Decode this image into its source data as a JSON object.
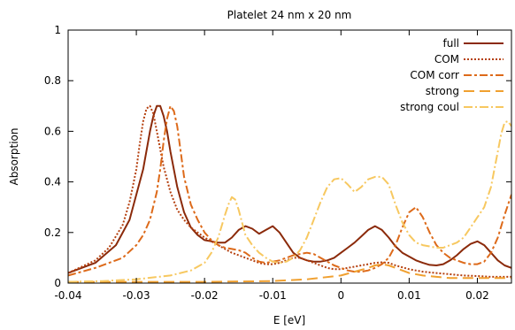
{
  "chart_data": {
    "type": "line",
    "title": "Platelet 24 nm x 20 nm",
    "xlabel": "E [eV]",
    "ylabel": "Absorption",
    "xlim": [
      -0.04,
      0.025
    ],
    "ylim": [
      0,
      1
    ],
    "xticks": [
      -0.04,
      -0.03,
      -0.02,
      -0.01,
      0,
      0.01,
      0.02
    ],
    "xtick_labels": [
      "-0.04",
      "-0.03",
      "-0.02",
      "-0.01",
      "0",
      "0.01",
      "0.02"
    ],
    "yticks": [
      0,
      0.2,
      0.4,
      0.6,
      0.8,
      1
    ],
    "ytick_labels": [
      "0",
      "0.2",
      "0.4",
      "0.6",
      "0.8",
      "1"
    ],
    "grid": false,
    "legend_position": "top-right",
    "series": [
      {
        "name": "full",
        "color": "#8b2a0a",
        "dash": "solid",
        "x": [
          -0.04,
          -0.036,
          -0.033,
          -0.031,
          -0.029,
          -0.028,
          -0.0275,
          -0.027,
          -0.0265,
          -0.026,
          -0.0255,
          -0.025,
          -0.024,
          -0.023,
          -0.022,
          -0.021,
          -0.02,
          -0.019,
          -0.018,
          -0.017,
          -0.016,
          -0.015,
          -0.014,
          -0.013,
          -0.012,
          -0.011,
          -0.01,
          -0.009,
          -0.008,
          -0.007,
          -0.006,
          -0.005,
          -0.004,
          -0.003,
          -0.002,
          -0.001,
          0,
          0.001,
          0.002,
          0.003,
          0.004,
          0.005,
          0.006,
          0.007,
          0.008,
          0.009,
          0.01,
          0.011,
          0.012,
          0.013,
          0.014,
          0.015,
          0.016,
          0.017,
          0.018,
          0.019,
          0.02,
          0.021,
          0.022,
          0.023,
          0.024,
          0.025
        ],
        "y": [
          0.04,
          0.08,
          0.15,
          0.25,
          0.45,
          0.6,
          0.66,
          0.7,
          0.7,
          0.66,
          0.6,
          0.52,
          0.38,
          0.28,
          0.22,
          0.19,
          0.17,
          0.165,
          0.16,
          0.16,
          0.18,
          0.21,
          0.225,
          0.215,
          0.195,
          0.21,
          0.225,
          0.2,
          0.16,
          0.12,
          0.1,
          0.09,
          0.085,
          0.085,
          0.09,
          0.1,
          0.12,
          0.14,
          0.16,
          0.185,
          0.21,
          0.225,
          0.21,
          0.18,
          0.145,
          0.12,
          0.105,
          0.09,
          0.08,
          0.072,
          0.07,
          0.075,
          0.09,
          0.11,
          0.135,
          0.155,
          0.165,
          0.15,
          0.12,
          0.09,
          0.07,
          0.06
        ]
      },
      {
        "name": "COM",
        "color": "#b5400f",
        "dash": "2,2",
        "x": [
          -0.04,
          -0.036,
          -0.034,
          -0.032,
          -0.031,
          -0.03,
          -0.0295,
          -0.029,
          -0.0285,
          -0.028,
          -0.0275,
          -0.027,
          -0.026,
          -0.025,
          -0.024,
          -0.023,
          -0.022,
          -0.021,
          -0.02,
          -0.019,
          -0.018,
          -0.017,
          -0.016,
          -0.015,
          -0.014,
          -0.013,
          -0.012,
          -0.011,
          -0.01,
          -0.009,
          -0.008,
          -0.007,
          -0.006,
          -0.005,
          -0.004,
          -0.003,
          -0.002,
          -0.001,
          0,
          0.001,
          0.002,
          0.003,
          0.004,
          0.005,
          0.006,
          0.007,
          0.008,
          0.01,
          0.012,
          0.014,
          0.016,
          0.018,
          0.02,
          0.022,
          0.025
        ],
        "y": [
          0.04,
          0.09,
          0.14,
          0.23,
          0.32,
          0.45,
          0.55,
          0.64,
          0.69,
          0.7,
          0.67,
          0.6,
          0.46,
          0.36,
          0.29,
          0.25,
          0.22,
          0.2,
          0.18,
          0.165,
          0.15,
          0.135,
          0.12,
          0.11,
          0.1,
          0.09,
          0.08,
          0.075,
          0.075,
          0.08,
          0.09,
          0.1,
          0.1,
          0.09,
          0.08,
          0.07,
          0.06,
          0.055,
          0.055,
          0.06,
          0.065,
          0.07,
          0.075,
          0.08,
          0.082,
          0.08,
          0.07,
          0.055,
          0.045,
          0.04,
          0.035,
          0.03,
          0.028,
          0.025,
          0.025
        ]
      },
      {
        "name": "COM corr",
        "color": "#dd6a1a",
        "dash": "9,3,3,3",
        "x": [
          -0.04,
          -0.036,
          -0.032,
          -0.03,
          -0.029,
          -0.028,
          -0.027,
          -0.0265,
          -0.026,
          -0.0255,
          -0.025,
          -0.0245,
          -0.024,
          -0.0235,
          -0.023,
          -0.022,
          -0.021,
          -0.02,
          -0.019,
          -0.018,
          -0.017,
          -0.016,
          -0.015,
          -0.014,
          -0.013,
          -0.012,
          -0.011,
          -0.01,
          -0.009,
          -0.008,
          -0.007,
          -0.006,
          -0.005,
          -0.004,
          -0.003,
          -0.002,
          -0.001,
          0,
          0.001,
          0.002,
          0.003,
          0.004,
          0.005,
          0.006,
          0.007,
          0.008,
          0.009,
          0.01,
          0.011,
          0.012,
          0.013,
          0.014,
          0.015,
          0.016,
          0.017,
          0.018,
          0.019,
          0.02,
          0.021,
          0.022,
          0.023,
          0.024,
          0.025
        ],
        "y": [
          0.03,
          0.06,
          0.1,
          0.15,
          0.19,
          0.25,
          0.36,
          0.45,
          0.56,
          0.65,
          0.7,
          0.68,
          0.62,
          0.52,
          0.42,
          0.31,
          0.25,
          0.2,
          0.17,
          0.15,
          0.14,
          0.135,
          0.13,
          0.12,
          0.1,
          0.085,
          0.08,
          0.085,
          0.09,
          0.1,
          0.11,
          0.115,
          0.12,
          0.115,
          0.1,
          0.085,
          0.07,
          0.06,
          0.05,
          0.045,
          0.045,
          0.05,
          0.06,
          0.075,
          0.1,
          0.15,
          0.22,
          0.28,
          0.3,
          0.26,
          0.2,
          0.15,
          0.12,
          0.1,
          0.09,
          0.08,
          0.075,
          0.075,
          0.085,
          0.12,
          0.18,
          0.27,
          0.35
        ]
      },
      {
        "name": "strong",
        "color": "#f0a030",
        "dash": "12,6",
        "x": [
          -0.04,
          -0.03,
          -0.02,
          -0.01,
          -0.005,
          0,
          0.002,
          0.004,
          0.005,
          0.006,
          0.007,
          0.008,
          0.01,
          0.012,
          0.014,
          0.016,
          0.018,
          0.02,
          0.022,
          0.025
        ],
        "y": [
          0.005,
          0.005,
          0.005,
          0.008,
          0.015,
          0.03,
          0.045,
          0.06,
          0.07,
          0.075,
          0.07,
          0.06,
          0.04,
          0.03,
          0.025,
          0.02,
          0.02,
          0.02,
          0.02,
          0.02
        ]
      },
      {
        "name": "strong coul",
        "color": "#f7c860",
        "dash": "10,3,2,3",
        "x": [
          -0.04,
          -0.035,
          -0.03,
          -0.025,
          -0.022,
          -0.02,
          -0.019,
          -0.018,
          -0.017,
          -0.0165,
          -0.016,
          -0.0155,
          -0.015,
          -0.0145,
          -0.014,
          -0.013,
          -0.012,
          -0.011,
          -0.01,
          -0.009,
          -0.008,
          -0.007,
          -0.006,
          -0.005,
          -0.004,
          -0.003,
          -0.002,
          -0.001,
          0,
          0.001,
          0.002,
          0.003,
          0.004,
          0.005,
          0.006,
          0.007,
          0.008,
          0.009,
          0.01,
          0.011,
          0.012,
          0.013,
          0.014,
          0.015,
          0.016,
          0.017,
          0.018,
          0.019,
          0.02,
          0.021,
          0.022,
          0.0225,
          0.023,
          0.0235,
          0.024,
          0.0245,
          0.025
        ],
        "y": [
          0.005,
          0.008,
          0.015,
          0.03,
          0.05,
          0.08,
          0.12,
          0.18,
          0.27,
          0.31,
          0.34,
          0.33,
          0.29,
          0.24,
          0.19,
          0.15,
          0.12,
          0.1,
          0.085,
          0.08,
          0.085,
          0.1,
          0.13,
          0.18,
          0.25,
          0.32,
          0.38,
          0.41,
          0.415,
          0.39,
          0.36,
          0.38,
          0.41,
          0.42,
          0.42,
          0.39,
          0.31,
          0.24,
          0.19,
          0.16,
          0.15,
          0.145,
          0.14,
          0.14,
          0.15,
          0.16,
          0.18,
          0.22,
          0.26,
          0.3,
          0.38,
          0.45,
          0.52,
          0.59,
          0.635,
          0.64,
          0.62
        ]
      }
    ]
  }
}
